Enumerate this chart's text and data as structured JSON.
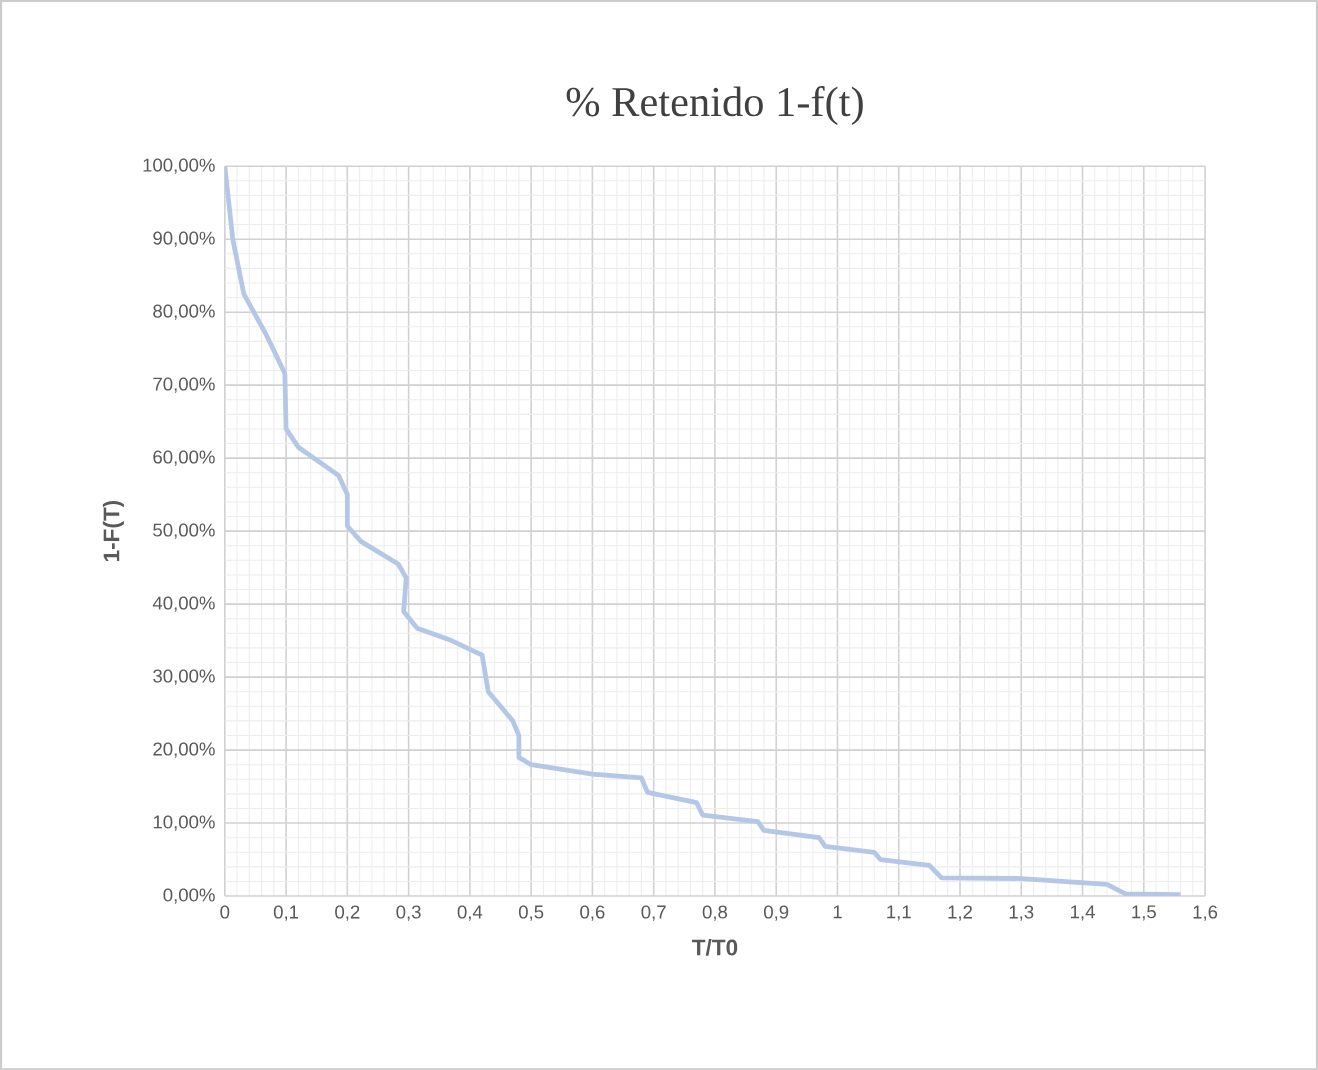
{
  "chart_data": {
    "type": "line",
    "title": "% Retenido 1-f(t)",
    "xlabel": "T/T0",
    "ylabel": "1-F(T)",
    "x": [
      0,
      0.013,
      0.031,
      0.067,
      0.098,
      0.1,
      0.12,
      0.186,
      0.2,
      0.2,
      0.222,
      0.283,
      0.296,
      0.292,
      0.314,
      0.37,
      0.42,
      0.43,
      0.45,
      0.47,
      0.48,
      0.48,
      0.5,
      0.6,
      0.68,
      0.69,
      0.77,
      0.78,
      0.87,
      0.88,
      0.97,
      0.98,
      1.06,
      1.07,
      1.15,
      1.17,
      1.3,
      1.44,
      1.47,
      1.56
    ],
    "series": [
      {
        "color": "#b4c7e7",
        "values": [
          100,
          90,
          82.5,
          77,
          71.6,
          64,
          61.5,
          57.6,
          55,
          50.7,
          48.6,
          45.5,
          43.6,
          39,
          36.7,
          35,
          33,
          28,
          26,
          24,
          22,
          19,
          18,
          16.7,
          16.2,
          14.2,
          12.8,
          11.1,
          10.2,
          9,
          8,
          6.8,
          6,
          5,
          4.2,
          2.5,
          2.4,
          1.6,
          0.3,
          0.2
        ]
      }
    ],
    "xlim": [
      0,
      1.6
    ],
    "ylim": [
      0,
      100
    ],
    "xticks": [
      0,
      {
        "value": 0.1,
        "label": "0,1"
      },
      {
        "value": 0.2,
        "label": "0,2"
      },
      {
        "value": 0.3,
        "label": "0,3"
      },
      {
        "value": 0.4,
        "label": "0,4"
      },
      {
        "value": 0.5,
        "label": "0,5"
      },
      {
        "value": 0.6,
        "label": "0,6"
      },
      {
        "value": 0.7,
        "label": "0,7"
      },
      {
        "value": 0.8,
        "label": "0,8"
      },
      {
        "value": 0.9,
        "label": "0,9"
      },
      1,
      {
        "value": 1.1,
        "label": "1,1"
      },
      {
        "value": 1.2,
        "label": "1,2"
      },
      {
        "value": 1.3,
        "label": "1,3"
      },
      {
        "value": 1.4,
        "label": "1,4"
      },
      {
        "value": 1.5,
        "label": "1,5"
      },
      {
        "value": 1.6,
        "label": "1,6"
      }
    ],
    "yticks": [
      {
        "value": 0,
        "label": "0,00%"
      },
      {
        "value": 10,
        "label": "10,00%"
      },
      {
        "value": 20,
        "label": "20,00%"
      },
      {
        "value": 30,
        "label": "30,00%"
      },
      {
        "value": 40,
        "label": "40,00%"
      },
      {
        "value": 50,
        "label": "50,00%"
      },
      {
        "value": 60,
        "label": "60,00%"
      },
      {
        "value": 70,
        "label": "70,00%"
      },
      {
        "value": 80,
        "label": "80,00%"
      },
      {
        "value": 90,
        "label": "90,00%"
      },
      {
        "value": 100,
        "label": "100,00%"
      }
    ],
    "grid": true,
    "marker": "none",
    "line_style": "solid"
  }
}
